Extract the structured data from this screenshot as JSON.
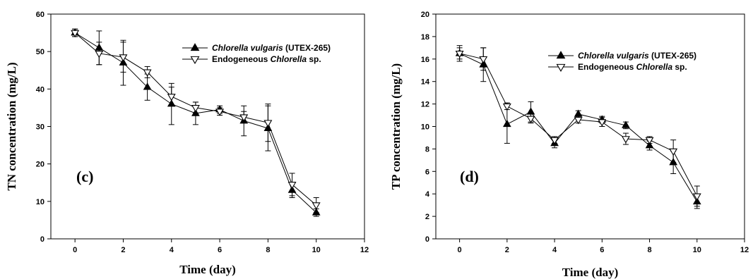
{
  "chart_data": [
    {
      "type": "line",
      "panel_label": "(c)",
      "xlabel": "Time (day)",
      "ylabel": "TN concentration (mg/L)",
      "xlim": [
        -1,
        12
      ],
      "ylim": [
        0,
        60
      ],
      "xticks": [
        0,
        2,
        4,
        6,
        8,
        10,
        12
      ],
      "yticks": [
        0,
        10,
        20,
        30,
        40,
        50,
        60
      ],
      "grid": false,
      "legend_position": "top-right",
      "series": [
        {
          "name_italic": "Chlorella vulgaris",
          "name_rest": " (UTEX-265)",
          "marker": "filled-triangle-up",
          "x": [
            0,
            1,
            2,
            3,
            4,
            5,
            6,
            7,
            8,
            9,
            10
          ],
          "y": [
            55,
            51,
            47,
            40.5,
            36,
            33.5,
            34.5,
            31.5,
            29.5,
            13,
            7
          ],
          "err": [
            1,
            4.5,
            6,
            3.5,
            5.5,
            3,
            1,
            4,
            6,
            2,
            1
          ]
        },
        {
          "name_prefix": "Endogeneous ",
          "name_italic": "Chlorella",
          "name_rest": " sp.",
          "marker": "open-triangle-down",
          "x": [
            0,
            1,
            2,
            3,
            4,
            5,
            6,
            7,
            8,
            9,
            10
          ],
          "y": [
            55,
            49.5,
            48.5,
            44.5,
            38,
            35,
            34,
            32.5,
            31,
            14.5,
            9
          ],
          "err": [
            1,
            3,
            4,
            1.5,
            2.5,
            1.5,
            1,
            1.5,
            5,
            3,
            2
          ]
        }
      ]
    },
    {
      "type": "line",
      "panel_label": "(d)",
      "xlabel": "Time (day)",
      "ylabel": "TP concentration (mg/L)",
      "xlim": [
        -1,
        12
      ],
      "ylim": [
        0,
        20
      ],
      "xticks": [
        0,
        2,
        4,
        6,
        8,
        10,
        12
      ],
      "yticks": [
        0,
        2,
        4,
        6,
        8,
        10,
        12,
        14,
        16,
        18,
        20
      ],
      "grid": false,
      "legend_position": "top-right",
      "series": [
        {
          "name_italic": "Chlorella vulgaris",
          "name_rest": " (UTEX-265)",
          "marker": "filled-triangle-up",
          "x": [
            0,
            1,
            2,
            3,
            4,
            5,
            6,
            7,
            8,
            9,
            10
          ],
          "y": [
            16.5,
            15.5,
            10.2,
            11.3,
            8.5,
            11.1,
            10.6,
            10.1,
            8.3,
            6.8,
            3.3
          ],
          "err": [
            0.5,
            1.5,
            1.7,
            0.9,
            0.4,
            0.3,
            0.3,
            0.3,
            0.4,
            1,
            0.6
          ]
        },
        {
          "name_prefix": "Endogeneous ",
          "name_italic": "Chlorella",
          "name_rest": " sp.",
          "marker": "open-triangle-down",
          "x": [
            0,
            1,
            2,
            3,
            4,
            5,
            6,
            7,
            8,
            9,
            10
          ],
          "y": [
            16.5,
            16,
            11.8,
            10.7,
            8.8,
            10.6,
            10.4,
            8.9,
            8.8,
            7.8,
            3.8
          ],
          "err": [
            0.7,
            1,
            0.3,
            0.4,
            0.3,
            0.3,
            0.4,
            0.5,
            0.3,
            1,
            0.9
          ]
        }
      ]
    }
  ]
}
